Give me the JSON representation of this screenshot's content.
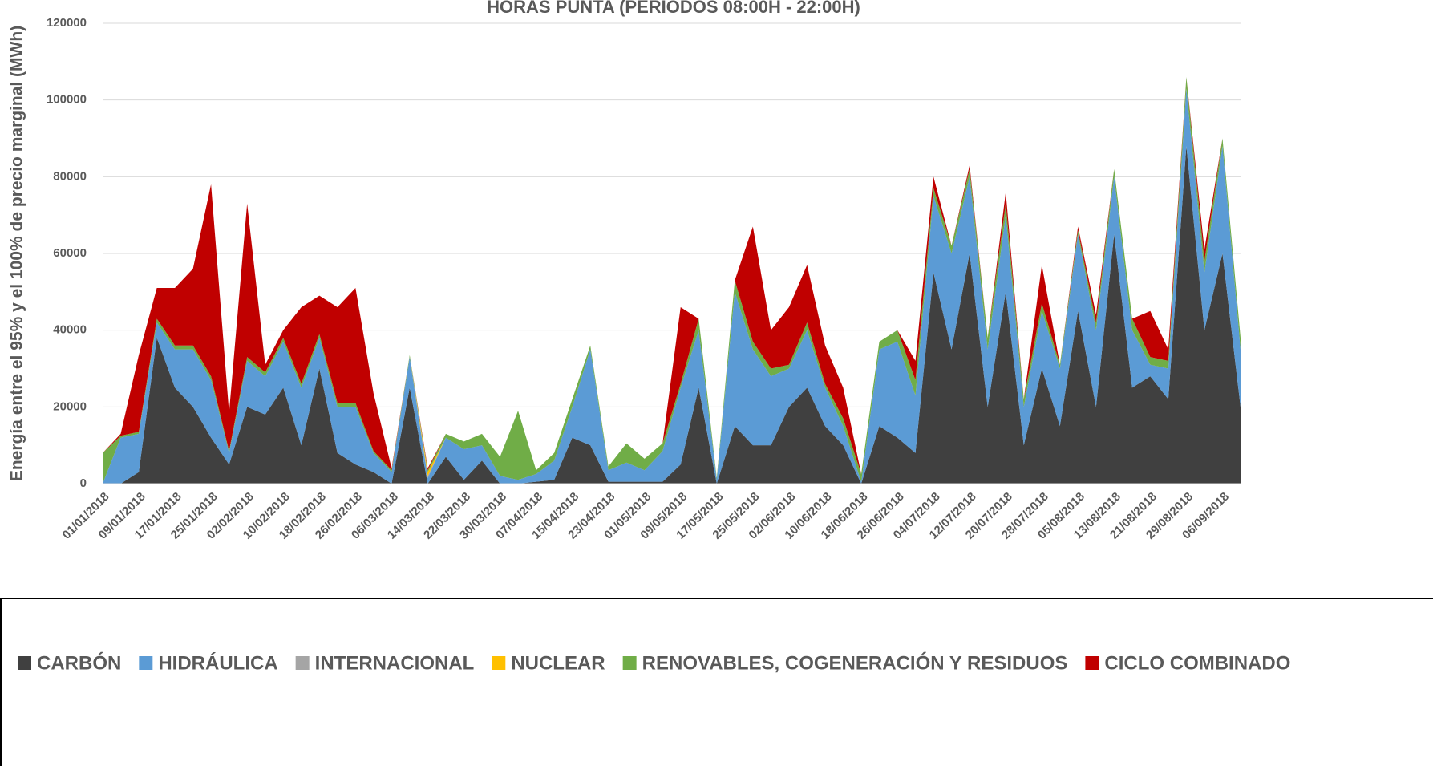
{
  "chart_data": {
    "type": "stacked_area",
    "title": "HORAS PUNTA (PERIODOS 08:00H - 22:00H)",
    "y_label": "Energía entre el 95% y el 100% de precio marginal (MWh)",
    "categories": [
      "01/01/2018",
      null,
      "09/01/2018",
      null,
      "17/01/2018",
      null,
      "25/01/2018",
      null,
      "02/02/2018",
      null,
      "10/02/2018",
      null,
      "18/02/2018",
      null,
      "26/02/2018",
      null,
      "06/03/2018",
      null,
      "14/03/2018",
      null,
      "22/03/2018",
      null,
      "30/03/2018",
      null,
      "07/04/2018",
      null,
      "15/04/2018",
      null,
      "23/04/2018",
      null,
      "01/05/2018",
      null,
      "09/05/2018",
      null,
      "17/05/2018",
      null,
      "25/05/2018",
      null,
      "02/06/2018",
      null,
      "10/06/2018",
      null,
      "18/06/2018",
      null,
      "26/06/2018",
      null,
      "04/07/2018",
      null,
      "12/07/2018",
      null,
      "20/07/2018",
      null,
      "28/07/2018",
      null,
      "05/08/2018",
      null,
      "13/08/2018",
      null,
      "21/08/2018",
      null,
      "29/08/2018",
      null,
      "06/09/2018",
      null
    ],
    "series": [
      {
        "name": "CARBÓN",
        "color": "#404040",
        "values": [
          0,
          0,
          3000,
          38000,
          25000,
          20000,
          12000,
          5000,
          20000,
          18000,
          25000,
          10000,
          30000,
          8000,
          5000,
          3000,
          0,
          25000,
          0,
          7000,
          1000,
          6000,
          0,
          0,
          500,
          1000,
          12000,
          10000,
          500,
          500,
          500,
          500,
          5000,
          25000,
          0,
          15000,
          10000,
          10000,
          20000,
          25000,
          15000,
          10000,
          0,
          15000,
          12000,
          8000,
          55000,
          35000,
          60000,
          20000,
          50000,
          10000,
          30000,
          15000,
          45000,
          20000,
          65000,
          25000,
          28000,
          22000,
          88000,
          40000,
          60000,
          20000
        ]
      },
      {
        "name": "HIDRÁULICA",
        "color": "#5b9bd5",
        "values": [
          0,
          12000,
          10000,
          4000,
          10000,
          15000,
          15000,
          3000,
          12000,
          10000,
          12000,
          15000,
          8000,
          12000,
          15000,
          5000,
          3000,
          8000,
          1500,
          5000,
          8000,
          4000,
          2000,
          1000,
          2000,
          5000,
          8000,
          25000,
          3000,
          5000,
          3000,
          8000,
          20000,
          15000,
          1000,
          35000,
          25000,
          18000,
          10000,
          15000,
          10000,
          5000,
          500,
          20000,
          25000,
          15000,
          20000,
          25000,
          20000,
          15000,
          20000,
          10000,
          15000,
          15000,
          20000,
          20000,
          15000,
          15000,
          3000,
          8000,
          15000,
          15000,
          28000,
          15000
        ]
      },
      {
        "name": "INTERNACIONAL",
        "color": "#a5a5a5",
        "values": [
          0,
          0,
          0,
          0,
          0,
          0,
          0,
          0,
          0,
          0,
          0,
          0,
          0,
          0,
          0,
          0,
          0,
          0,
          500,
          0,
          0,
          0,
          0,
          0,
          0,
          0,
          0,
          0,
          0,
          0,
          0,
          0,
          0,
          0,
          0,
          0,
          0,
          0,
          0,
          0,
          0,
          0,
          0,
          0,
          0,
          0,
          0,
          0,
          0,
          0,
          0,
          0,
          0,
          0,
          0,
          0,
          0,
          0,
          0,
          0,
          0,
          0,
          0,
          0
        ]
      },
      {
        "name": "NUCLEAR",
        "color": "#ffc000",
        "values": [
          0,
          0,
          0,
          0,
          0,
          0,
          0,
          0,
          0,
          0,
          0,
          0,
          0,
          0,
          0,
          0,
          0,
          0,
          1000,
          0,
          0,
          0,
          0,
          0,
          0,
          0,
          0,
          0,
          0,
          0,
          0,
          0,
          0,
          0,
          0,
          0,
          0,
          0,
          0,
          0,
          0,
          0,
          0,
          0,
          0,
          0,
          0,
          0,
          0,
          0,
          0,
          0,
          0,
          0,
          0,
          0,
          0,
          0,
          0,
          0,
          0,
          0,
          0,
          0
        ]
      },
      {
        "name": "RENOVABLES, COGENERACIÓN Y RESIDUOS",
        "color": "#70ad47",
        "values": [
          8000,
          500,
          500,
          1000,
          1000,
          1000,
          1000,
          500,
          1000,
          1000,
          1000,
          1000,
          1000,
          1000,
          1000,
          500,
          500,
          500,
          500,
          1000,
          2000,
          3000,
          5000,
          18000,
          1000,
          2000,
          2000,
          1000,
          1000,
          5000,
          3000,
          2000,
          1000,
          3000,
          500,
          3000,
          2000,
          2000,
          1000,
          2000,
          1000,
          2000,
          2000,
          2000,
          3000,
          4000,
          2000,
          2000,
          2000,
          3000,
          3000,
          2000,
          2000,
          1000,
          1000,
          2000,
          2000,
          3000,
          2000,
          2000,
          3000,
          3000,
          2000,
          3000
        ]
      },
      {
        "name": "CICLO COMBINADO",
        "color": "#c00000",
        "values": [
          0,
          500,
          20000,
          8000,
          15000,
          20000,
          50000,
          10000,
          40000,
          2000,
          2000,
          20000,
          10000,
          25000,
          30000,
          15000,
          500,
          0,
          500,
          0,
          0,
          0,
          0,
          0,
          0,
          0,
          0,
          0,
          0,
          0,
          0,
          0,
          20000,
          0,
          0,
          0,
          30000,
          10000,
          15000,
          15000,
          10000,
          8000,
          0,
          0,
          0,
          5000,
          3000,
          0,
          1000,
          0,
          3000,
          0,
          10000,
          0,
          1000,
          2000,
          0,
          0,
          12000,
          3000,
          0,
          3000,
          0,
          0
        ]
      }
    ],
    "ylim": [
      0,
      120000
    ],
    "yticks": [
      0,
      20000,
      40000,
      60000,
      80000,
      100000,
      120000
    ],
    "grid": true
  }
}
